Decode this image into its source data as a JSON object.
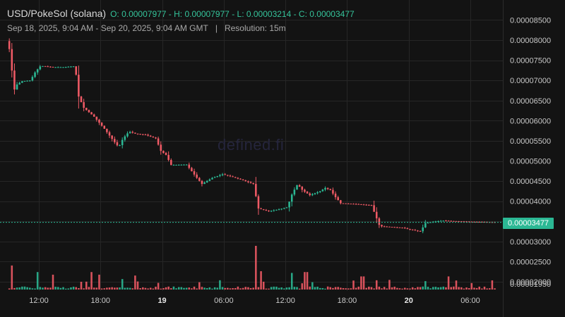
{
  "header": {
    "pair": "USD/PokeSol (solana)",
    "ohlc_text": "O: 0.00007977 - H: 0.00007977 - L: 0.00003214 - C: 0.00003477",
    "date_range": "Sep 18, 2025, 9:04 AM - Sep 20, 2025, 9:04 AM GMT",
    "separator": "|",
    "resolution": "Resolution: 15m"
  },
  "watermark": "defined.fi",
  "current_price_label": "0.00003477",
  "colors": {
    "up": "#2bb894",
    "down": "#ef5a65",
    "grid": "#262626",
    "background": "#131313",
    "axis_text": "#c8c8c8",
    "price_line": "#2bb894"
  },
  "chart_data": {
    "type": "candlestick",
    "resolution": "15m",
    "ohlc": {
      "open": 7.977e-05,
      "high": 7.977e-05,
      "low": 3.214e-05,
      "close": 3.477e-05
    },
    "y_ticks": [
      "0.00001950",
      "0.00002000",
      "0.00002500",
      "0.00003000",
      "0.00003500",
      "0.00004000",
      "0.00004500",
      "0.00005000",
      "0.00005500",
      "0.00006000",
      "0.00006500",
      "0.00007000",
      "0.00007500",
      "0.00008000",
      "0.00008500"
    ],
    "x_ticks": [
      {
        "label": "12:00",
        "hour": 3,
        "bold": false
      },
      {
        "label": "18:00",
        "hour": 9,
        "bold": false
      },
      {
        "label": "19",
        "hour": 15,
        "bold": true
      },
      {
        "label": "06:00",
        "hour": 21,
        "bold": false
      },
      {
        "label": "12:00",
        "hour": 27,
        "bold": false
      },
      {
        "label": "18:00",
        "hour": 33,
        "bold": false
      },
      {
        "label": "20",
        "hour": 39,
        "bold": true
      },
      {
        "label": "06:00",
        "hour": 45,
        "bold": false
      }
    ],
    "price_anchors": [
      [
        0,
        7.97e-05
      ],
      [
        0.3,
        7.74e-05
      ],
      [
        0.7,
        6.75e-05
      ],
      [
        1.0,
        6.9e-05
      ],
      [
        1.5,
        6.98e-05
      ],
      [
        2.3,
        7e-05
      ],
      [
        2.8,
        7.22e-05
      ],
      [
        3.3,
        7.36e-05
      ],
      [
        4.5,
        7.33e-05
      ],
      [
        5.5,
        7.33e-05
      ],
      [
        6.5,
        7.35e-05
      ],
      [
        6.8,
        7.1e-05
      ],
      [
        7.0,
        6.6e-05
      ],
      [
        7.5,
        6.32e-05
      ],
      [
        8.5,
        6.1e-05
      ],
      [
        9.5,
        5.8e-05
      ],
      [
        10.3,
        5.53e-05
      ],
      [
        10.9,
        5.34e-05
      ],
      [
        11.3,
        5.55e-05
      ],
      [
        11.9,
        5.73e-05
      ],
      [
        12.5,
        5.68e-05
      ],
      [
        13.5,
        5.65e-05
      ],
      [
        14.5,
        5.56e-05
      ],
      [
        15.0,
        5.25e-05
      ],
      [
        15.5,
        5.15e-05
      ],
      [
        16.0,
        4.9e-05
      ],
      [
        17.5,
        4.91e-05
      ],
      [
        18.5,
        4.58e-05
      ],
      [
        19.0,
        4.43e-05
      ],
      [
        20.0,
        4.58e-05
      ],
      [
        21.0,
        4.67e-05
      ],
      [
        22.0,
        4.6e-05
      ],
      [
        23.0,
        4.52e-05
      ],
      [
        24.0,
        4.43e-05
      ],
      [
        24.5,
        3.82e-05
      ],
      [
        25.5,
        3.75e-05
      ],
      [
        26.5,
        3.8e-05
      ],
      [
        27.3,
        3.85e-05
      ],
      [
        27.8,
        4.2e-05
      ],
      [
        28.3,
        4.42e-05
      ],
      [
        28.8,
        4.27e-05
      ],
      [
        29.5,
        4.15e-05
      ],
      [
        30.5,
        4.25e-05
      ],
      [
        31.0,
        4.33e-05
      ],
      [
        31.5,
        4.28e-05
      ],
      [
        32.0,
        4.1e-05
      ],
      [
        32.5,
        3.95e-05
      ],
      [
        34.0,
        3.93e-05
      ],
      [
        35.5,
        3.9e-05
      ],
      [
        36.3,
        3.38e-05
      ],
      [
        37.5,
        3.36e-05
      ],
      [
        38.5,
        3.34e-05
      ],
      [
        40.0,
        3.26e-05
      ],
      [
        40.4,
        3.25e-05
      ],
      [
        40.6,
        3.45e-05
      ],
      [
        41.5,
        3.49e-05
      ],
      [
        42.5,
        3.52e-05
      ],
      [
        44.0,
        3.5e-05
      ],
      [
        45.5,
        3.49e-05
      ],
      [
        47.3,
        3.48e-05
      ]
    ],
    "volume_spikes": [
      [
        0.3,
        0.55
      ],
      [
        2.8,
        0.4
      ],
      [
        4.3,
        0.34
      ],
      [
        8.2,
        0.4
      ],
      [
        8.8,
        0.34
      ],
      [
        12.4,
        0.32
      ],
      [
        24.2,
        1.0
      ],
      [
        24.6,
        0.42
      ],
      [
        27.7,
        0.38
      ],
      [
        29.0,
        0.4
      ],
      [
        34.5,
        0.3
      ],
      [
        42.9,
        0.3
      ],
      [
        37.2,
        0.22
      ]
    ]
  }
}
